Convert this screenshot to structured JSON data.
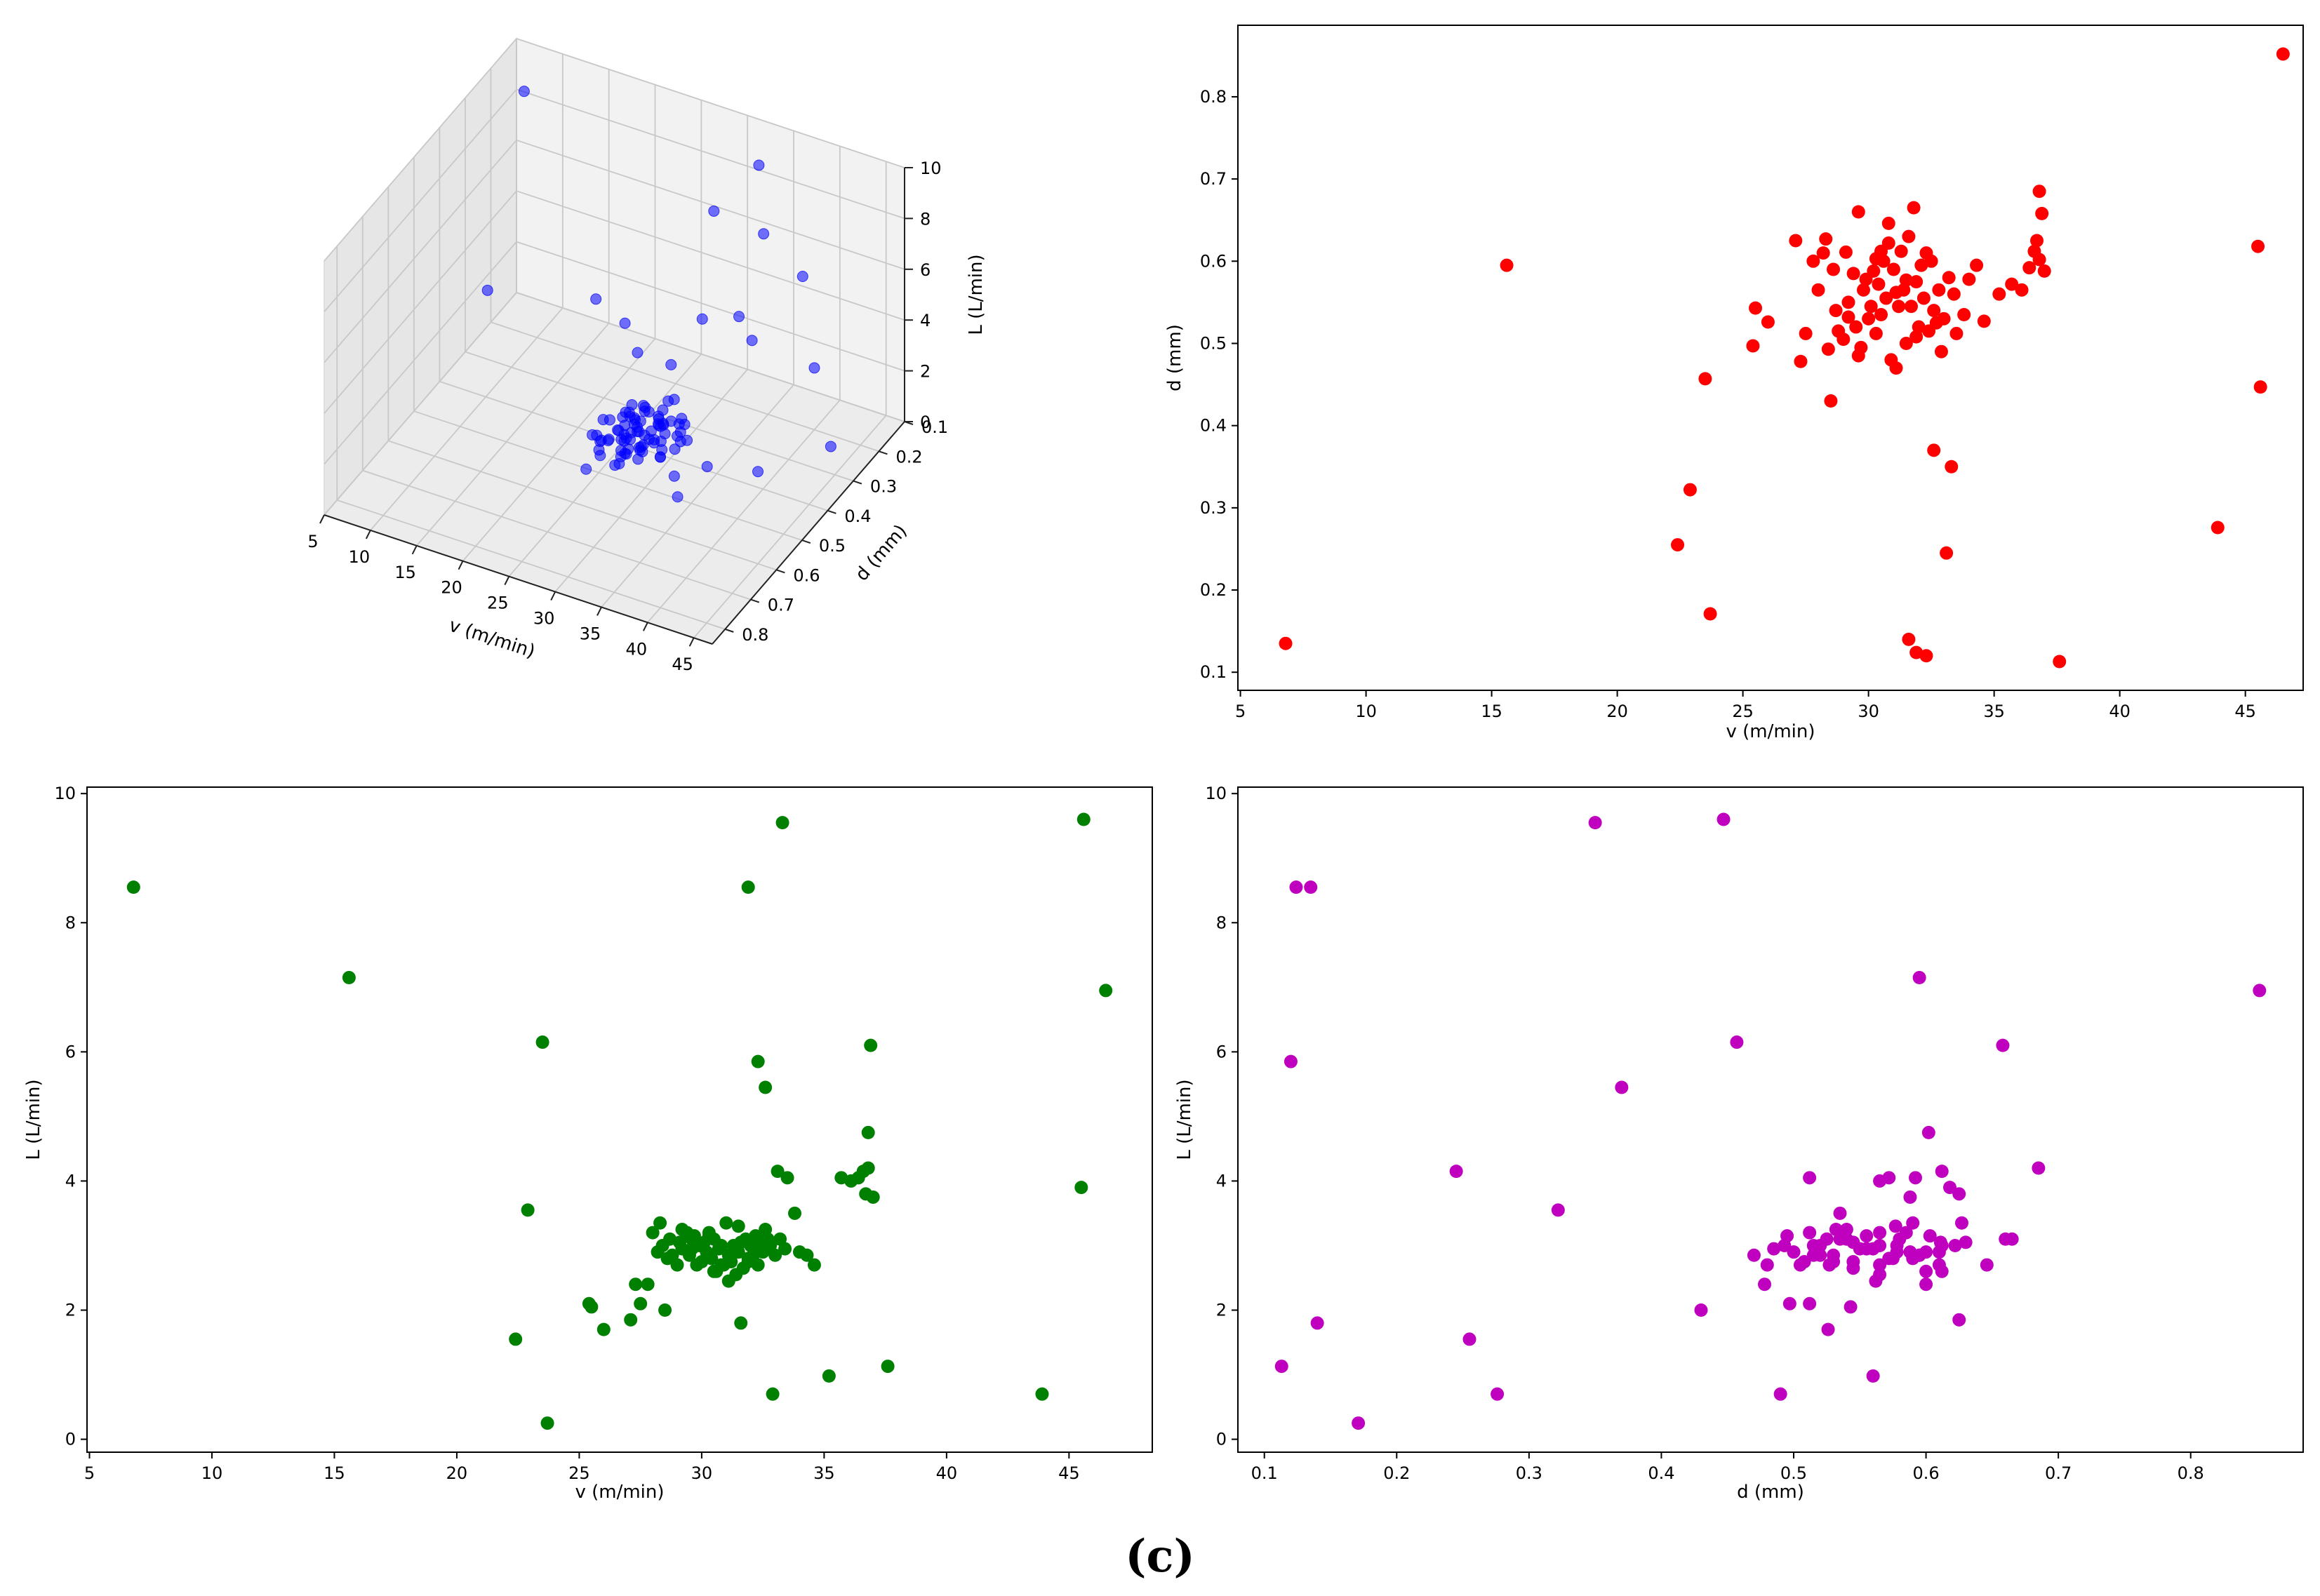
{
  "figure": {
    "caption": "(c)"
  },
  "chart_data": [
    {
      "id": "scatter3d",
      "type": "scatter",
      "projection": "3d",
      "color": "#0000ff",
      "xlabel": "v (m/min)",
      "ylabel": "d (mm)",
      "zlabel": "L (L/min)",
      "xlim": [
        5,
        47
      ],
      "ylim": [
        0.1,
        0.85
      ],
      "zlim": [
        0,
        10
      ],
      "xticks": [
        "5",
        "10",
        "15",
        "20",
        "25",
        "30",
        "35",
        "40",
        "45"
      ],
      "yticks": [
        "0.1",
        "0.2",
        "0.3",
        "0.4",
        "0.5",
        "0.6",
        "0.7",
        "0.8"
      ],
      "zticks": [
        "0",
        "2",
        "4",
        "6",
        "8",
        "10"
      ],
      "xtick_values": [
        5,
        10,
        15,
        20,
        25,
        30,
        35,
        40,
        45
      ],
      "ytick_values": [
        0.1,
        0.2,
        0.3,
        0.4,
        0.5,
        0.6,
        0.7,
        0.8
      ],
      "ztick_values": [
        0,
        2,
        4,
        6,
        8,
        10
      ]
    },
    {
      "id": "v_vs_d",
      "type": "scatter",
      "color": "#ff0000",
      "xlabel": "v (m/min)",
      "ylabel": "d (mm)",
      "xlim": [
        4.9,
        47.3
      ],
      "ylim": [
        0.078,
        0.887
      ],
      "xticks": [
        "5",
        "10",
        "15",
        "20",
        "25",
        "30",
        "35",
        "40",
        "45"
      ],
      "yticks": [
        "0.1",
        "0.2",
        "0.3",
        "0.4",
        "0.5",
        "0.6",
        "0.7",
        "0.8"
      ],
      "xtick_values": [
        5,
        10,
        15,
        20,
        25,
        30,
        35,
        40,
        45
      ],
      "ytick_values": [
        0.1,
        0.2,
        0.3,
        0.4,
        0.5,
        0.6,
        0.7,
        0.8
      ]
    },
    {
      "id": "v_vs_L",
      "type": "scatter",
      "color": "#008000",
      "xlabel": "v (m/min)",
      "ylabel": "L (L/min)",
      "xlim": [
        4.9,
        48.4
      ],
      "ylim": [
        -0.2,
        10.1
      ],
      "xticks": [
        "5",
        "10",
        "15",
        "20",
        "25",
        "30",
        "35",
        "40",
        "45"
      ],
      "yticks": [
        "0",
        "2",
        "4",
        "6",
        "8",
        "10"
      ],
      "xtick_values": [
        5,
        10,
        15,
        20,
        25,
        30,
        35,
        40,
        45
      ],
      "ytick_values": [
        0,
        2,
        4,
        6,
        8,
        10
      ]
    },
    {
      "id": "d_vs_L",
      "type": "scatter",
      "color": "#bf00bf",
      "xlabel": "d (mm)",
      "ylabel": "L (L/min)",
      "xlim": [
        0.08,
        0.885
      ],
      "ylim": [
        -0.2,
        10.1
      ],
      "xticks": [
        "0.1",
        "0.2",
        "0.3",
        "0.4",
        "0.5",
        "0.6",
        "0.7",
        "0.8"
      ],
      "yticks": [
        "0",
        "2",
        "4",
        "6",
        "8",
        "10"
      ],
      "xtick_values": [
        0.1,
        0.2,
        0.3,
        0.4,
        0.5,
        0.6,
        0.7,
        0.8
      ],
      "ytick_values": [
        0,
        2,
        4,
        6,
        8,
        10
      ]
    }
  ],
  "points": [
    [
      6.8,
      0.135,
      8.55
    ],
    [
      15.6,
      0.595,
      7.15
    ],
    [
      22.4,
      0.255,
      1.55
    ],
    [
      22.9,
      0.322,
      3.55
    ],
    [
      23.5,
      0.457,
      6.15
    ],
    [
      23.7,
      0.171,
      0.25
    ],
    [
      25.4,
      0.497,
      2.1
    ],
    [
      25.5,
      0.543,
      2.05
    ],
    [
      26.0,
      0.526,
      1.7
    ],
    [
      27.1,
      0.625,
      1.85
    ],
    [
      27.3,
      0.478,
      2.4
    ],
    [
      27.5,
      0.512,
      2.1
    ],
    [
      27.8,
      0.6,
      2.4
    ],
    [
      28.0,
      0.565,
      3.2
    ],
    [
      28.2,
      0.61,
      2.9
    ],
    [
      28.5,
      0.43,
      2.0
    ],
    [
      28.4,
      0.493,
      3.0
    ],
    [
      28.3,
      0.627,
      3.35
    ],
    [
      28.6,
      0.59,
      2.8
    ],
    [
      28.7,
      0.54,
      3.1
    ],
    [
      29.0,
      0.505,
      2.7
    ],
    [
      29.1,
      0.611,
      3.05
    ],
    [
      29.2,
      0.55,
      2.95
    ],
    [
      29.4,
      0.585,
      3.2
    ],
    [
      29.5,
      0.52,
      2.85
    ],
    [
      29.6,
      0.66,
      3.1
    ],
    [
      29.7,
      0.495,
      3.15
    ],
    [
      29.8,
      0.565,
      2.7
    ],
    [
      29.9,
      0.578,
      3.0
    ],
    [
      30.0,
      0.53,
      2.75
    ],
    [
      30.1,
      0.545,
      3.05
    ],
    [
      30.2,
      0.588,
      2.9
    ],
    [
      30.3,
      0.512,
      3.2
    ],
    [
      30.4,
      0.572,
      2.8
    ],
    [
      30.5,
      0.535,
      3.1
    ],
    [
      30.6,
      0.6,
      2.6
    ],
    [
      30.7,
      0.555,
      2.95
    ],
    [
      30.8,
      0.622,
      3.0
    ],
    [
      30.9,
      0.48,
      2.7
    ],
    [
      31.0,
      0.59,
      3.35
    ],
    [
      31.1,
      0.47,
      2.85
    ],
    [
      31.2,
      0.545,
      2.75
    ],
    [
      31.3,
      0.612,
      3.0
    ],
    [
      31.4,
      0.565,
      2.55
    ],
    [
      31.5,
      0.5,
      2.9
    ],
    [
      31.6,
      0.63,
      3.05
    ],
    [
      31.7,
      0.545,
      2.65
    ],
    [
      31.8,
      0.665,
      3.1
    ],
    [
      31.9,
      0.575,
      2.8
    ],
    [
      32.0,
      0.52,
      3.0
    ],
    [
      32.1,
      0.595,
      2.85
    ],
    [
      32.2,
      0.555,
      3.15
    ],
    [
      32.3,
      0.61,
      2.7
    ],
    [
      32.4,
      0.515,
      3.0
    ],
    [
      32.5,
      0.6,
      2.9
    ],
    [
      32.6,
      0.54,
      3.25
    ],
    [
      32.8,
      0.565,
      3.0
    ],
    [
      33.0,
      0.53,
      2.85
    ],
    [
      33.2,
      0.58,
      3.1
    ],
    [
      33.4,
      0.56,
      2.95
    ],
    [
      29.2,
      0.532,
      3.25
    ],
    [
      30.5,
      0.612,
      2.6
    ],
    [
      31.9,
      0.508,
      2.75
    ],
    [
      28.8,
      0.515,
      2.85
    ],
    [
      30.3,
      0.603,
      3.15
    ],
    [
      31.5,
      0.577,
      3.3
    ],
    [
      32.7,
      0.525,
      3.1
    ],
    [
      29.6,
      0.485,
      2.95
    ],
    [
      30.8,
      0.646,
      2.7
    ],
    [
      31.1,
      0.562,
      2.45
    ],
    [
      31.9,
      0.124,
      8.55
    ],
    [
      31.6,
      0.14,
      1.8
    ],
    [
      32.3,
      0.12,
      5.85
    ],
    [
      32.6,
      0.37,
      5.45
    ],
    [
      33.1,
      0.245,
      4.15
    ],
    [
      33.3,
      0.35,
      9.55
    ],
    [
      33.5,
      0.512,
      4.05
    ],
    [
      32.9,
      0.49,
      0.7
    ],
    [
      33.8,
      0.535,
      3.5
    ],
    [
      34.0,
      0.578,
      2.9
    ],
    [
      34.3,
      0.595,
      2.85
    ],
    [
      34.6,
      0.527,
      2.7
    ],
    [
      35.2,
      0.56,
      0.98
    ],
    [
      35.7,
      0.572,
      4.05
    ],
    [
      36.1,
      0.565,
      4.0
    ],
    [
      36.4,
      0.592,
      4.05
    ],
    [
      36.7,
      0.625,
      3.8
    ],
    [
      36.8,
      0.602,
      4.75
    ],
    [
      36.9,
      0.658,
      6.1
    ],
    [
      36.8,
      0.685,
      4.2
    ],
    [
      37.0,
      0.588,
      3.75
    ],
    [
      36.6,
      0.612,
      4.15
    ],
    [
      37.6,
      0.113,
      1.13
    ],
    [
      43.9,
      0.276,
      0.7
    ],
    [
      45.5,
      0.618,
      3.9
    ],
    [
      45.6,
      0.447,
      9.6
    ],
    [
      46.5,
      0.852,
      6.95
    ]
  ]
}
